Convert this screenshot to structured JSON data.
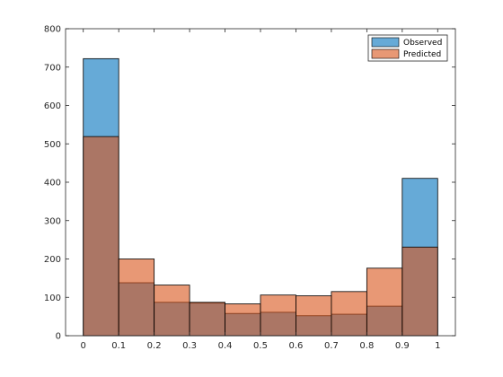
{
  "chart_data": {
    "type": "bar",
    "bin_edges": [
      0,
      0.1,
      0.2,
      0.3,
      0.4,
      0.5,
      0.6,
      0.7,
      0.8,
      0.9,
      1
    ],
    "series": [
      {
        "name": "Observed",
        "values": [
          722,
          138,
          87,
          85,
          58,
          61,
          52,
          56,
          77,
          410
        ],
        "color": "#0072BD"
      },
      {
        "name": "Predicted",
        "values": [
          519,
          200,
          132,
          87,
          83,
          106,
          104,
          115,
          176,
          231
        ],
        "color": "#D95319"
      }
    ],
    "xticks": [
      "0",
      "0.1",
      "0.2",
      "0.3",
      "0.4",
      "0.5",
      "0.6",
      "0.7",
      "0.8",
      "0.9",
      "1"
    ],
    "yticks": [
      "0",
      "100",
      "200",
      "300",
      "400",
      "500",
      "600",
      "700",
      "800"
    ],
    "xlim": [
      -0.05,
      1.05
    ],
    "ylim": [
      0,
      800
    ],
    "legend_position": "top-right",
    "bar_alpha": 0.6,
    "title": "",
    "xlabel": "",
    "ylabel": ""
  }
}
